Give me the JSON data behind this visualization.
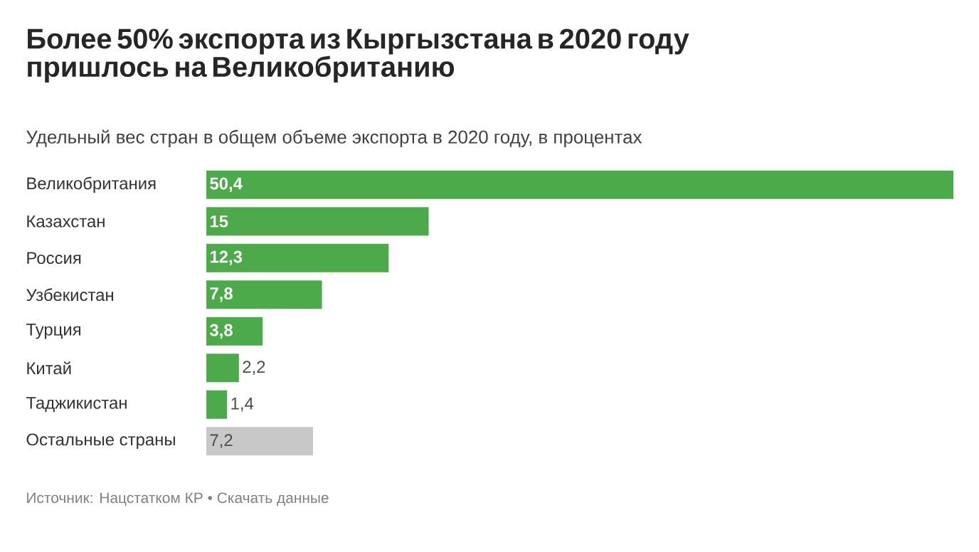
{
  "chart_data": {
    "type": "bar",
    "orientation": "horizontal",
    "title": "Более 50% экспорта из Кыргызстана в 2020 году пришлось на Великобританию",
    "subtitle": "Удельный вес стран в общем объеме экспорта в 2020 году, в процентах",
    "categories": [
      "Великобритания",
      "Казахстан",
      "Россия",
      "Узбекистан",
      "Турция",
      "Китай",
      "Таджикистан",
      "Остальные страны"
    ],
    "values": [
      50.4,
      15,
      12.3,
      7.8,
      3.8,
      2.2,
      1.4,
      7.2
    ],
    "value_labels": [
      "50,4",
      "15",
      "12,3",
      "7,8",
      "3,8",
      "2,2",
      "1,4",
      "7,2"
    ],
    "colors": [
      "#4daa4a",
      "#4daa4a",
      "#4daa4a",
      "#4daa4a",
      "#4daa4a",
      "#4daa4a",
      "#4daa4a",
      "#c8c8c8"
    ],
    "annotations": [
      "Источник: Нацстатком КР • Скачать данные"
    ]
  }
}
